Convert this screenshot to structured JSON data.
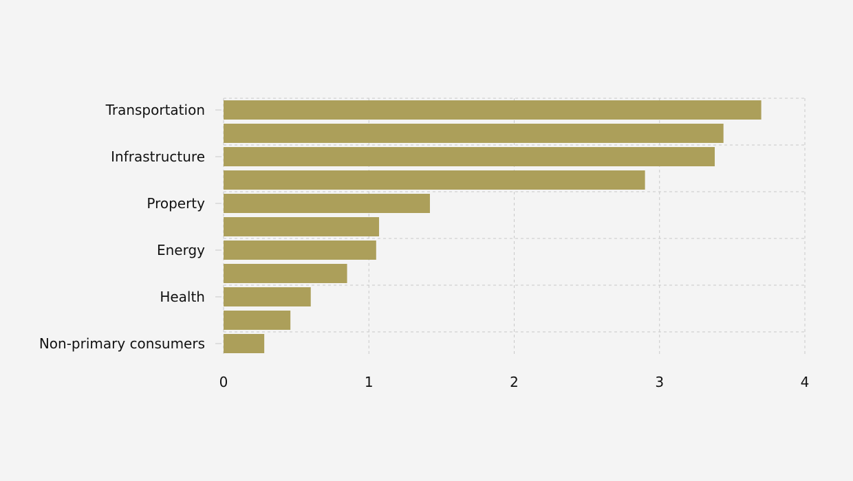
{
  "chart_data": {
    "type": "bar",
    "orientation": "horizontal",
    "categories": [
      "Transportation",
      "",
      "Infrastructure",
      "",
      "Property",
      "",
      "Energy",
      "",
      "Health",
      "",
      "Non-primary consumers"
    ],
    "values": [
      3.7,
      3.44,
      3.38,
      2.9,
      1.42,
      1.07,
      1.05,
      0.85,
      0.6,
      0.46,
      0.28
    ],
    "xlim": [
      0,
      4
    ],
    "xticks": [
      "0",
      "1",
      "2",
      "3",
      "4"
    ],
    "title": "",
    "xlabel": "",
    "ylabel": "",
    "grid": true,
    "legend": "none",
    "colors": {
      "bar": "#ac9f5a",
      "grid": "#c8c8c8",
      "background": "#f4f4f4",
      "text": "#111111"
    }
  }
}
